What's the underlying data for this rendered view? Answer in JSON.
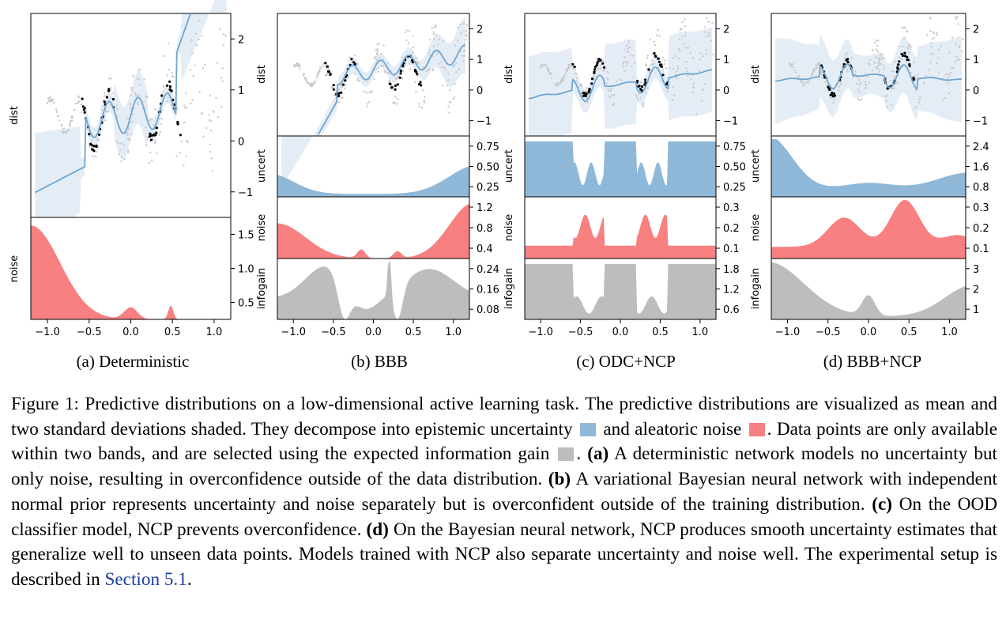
{
  "colors": {
    "uncert": "#8fb8d8",
    "noise": "#f88080",
    "infogain": "#bdbdbd",
    "mean_line": "#6fa5d1",
    "band": "#e4edf6",
    "data_grey": "#c8c8c8",
    "selected": "#000000",
    "link": "#1f3f9f"
  },
  "panel_labels": {
    "dist": "dist",
    "uncert": "uncert",
    "noise": "noise",
    "infogain": "infogain"
  },
  "x_ticks": [
    "−1.0",
    "−0.5",
    "0.0",
    "0.5",
    "1.0"
  ],
  "subfigures": [
    {
      "caption": "(a) Deterministic",
      "dist_ticks": [
        "2",
        "1",
        "0",
        "−1"
      ],
      "noise_ticks": [
        "1.5",
        "1.0",
        "0.5"
      ]
    },
    {
      "caption": "(b) BBB",
      "dist_ticks": [
        "2",
        "1",
        "0",
        "−1"
      ],
      "uncert_ticks": [
        "0.75",
        "0.50",
        "0.25"
      ],
      "noise_ticks": [
        "1.2",
        "0.8",
        "0.4"
      ],
      "infogain_ticks": [
        "0.24",
        "0.16",
        "0.08"
      ]
    },
    {
      "caption": "(c) ODC+NCP",
      "dist_ticks": [
        "2",
        "1",
        "0",
        "−1"
      ],
      "uncert_ticks": [
        "0.75",
        "0.50",
        "0.25"
      ],
      "noise_ticks": [
        "0.3",
        "0.2",
        "0.1"
      ],
      "infogain_ticks": [
        "1.8",
        "1.2",
        "0.6"
      ]
    },
    {
      "caption": "(d) BBB+NCP",
      "dist_ticks": [
        "2",
        "1",
        "0",
        "−1"
      ],
      "uncert_ticks": [
        "2.4",
        "1.6",
        "0.8"
      ],
      "noise_ticks": [
        "0.3",
        "0.2",
        "0.1"
      ],
      "infogain_ticks": [
        "3",
        "2",
        "1"
      ]
    }
  ],
  "caption": {
    "p1": "Figure 1: Predictive distributions on a low-dimensional active learning task. The predictive distributions are visualized as mean and two standard deviations shaded. They decompose into epistemic uncertainty",
    "p2": "and aleatoric noise",
    "p3": ". Data points are only available within two bands, and are selected using the expected information gain",
    "p4": ".",
    "a_label": "(a)",
    "a_text": "A deterministic network models no uncertainty but only noise, resulting in overconfidence outside of the data distribution.",
    "b_label": "(b)",
    "b_text": "A variational Bayesian neural network with independent normal prior represents uncertainty and noise separately but is overconfident outside of the training distribution.",
    "c_label": "(c)",
    "c_text": "On the OOD classifier model, NCP prevents overconfidence.",
    "d_label": "(d)",
    "d_text": "On the Bayesian neural network, NCP produces smooth uncertainty estimates that generalize well to unseen data points. Models trained with NCP also separate uncertainty and noise well. The experimental setup is described in",
    "link": "Section 5.1",
    "end": "."
  }
}
